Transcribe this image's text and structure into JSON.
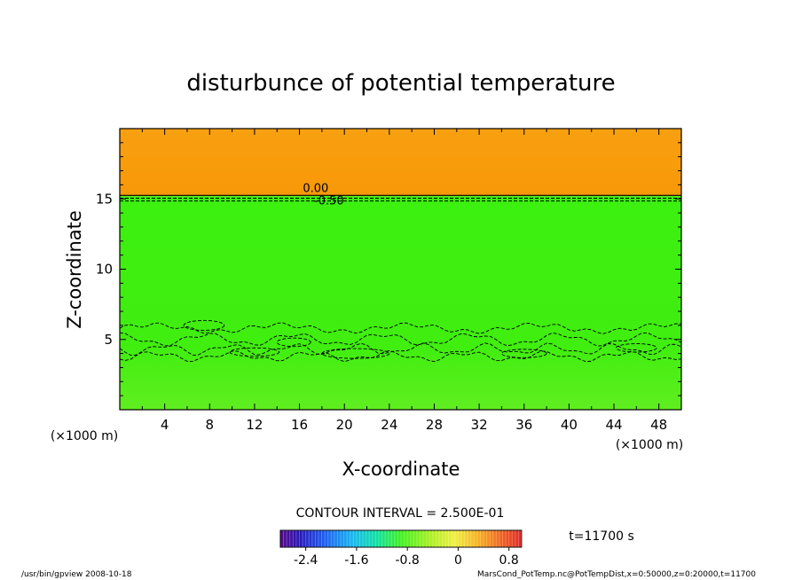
{
  "chart_data": {
    "type": "heatmap",
    "title": "disturbunce of potential temperature",
    "xlabel": "X-coordinate",
    "ylabel": "Z-coordinate",
    "x_unit": "(×1000 m)",
    "x_unit_left": "(×1000 m)",
    "xlim": [
      0,
      50
    ],
    "ylim": [
      0,
      20
    ],
    "x_ticks": [
      4,
      8,
      12,
      16,
      20,
      24,
      28,
      32,
      36,
      40,
      44,
      48
    ],
    "y_ticks": [
      5,
      10,
      15
    ],
    "contour_labels": [
      "0.00",
      "-0.50"
    ],
    "contour_interval_text": "CONTOUR INTERVAL = 2.500E-01",
    "time_text": "t=11700 s",
    "colorbar": {
      "min": -2.8,
      "max": 1.0,
      "tick_labels": [
        "-2.4",
        "-1.6",
        "-0.8",
        "0",
        "0.8"
      ],
      "tick_values": [
        -2.4,
        -1.6,
        -0.8,
        0,
        0.8
      ]
    },
    "regions": [
      {
        "z_min": 0,
        "z_max": 15.2,
        "value": -0.5
      },
      {
        "z_min": 15.2,
        "z_max": 20,
        "value": 0.5
      }
    ],
    "footer_left": "/usr/bin/gpview   2008-10-18",
    "footer_right": "MarsCond_PotTemp.nc@PotTempDist,x=0:50000,z=0:20000,t=11700"
  }
}
